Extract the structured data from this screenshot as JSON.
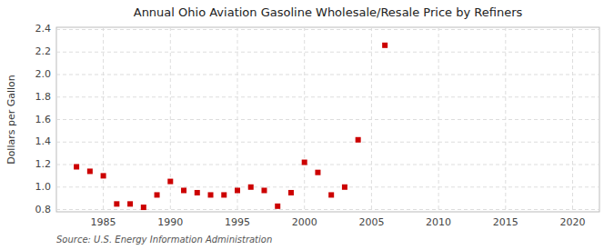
{
  "chart_data": {
    "type": "scatter",
    "title": "Annual Ohio Aviation Gasoline Wholesale/Resale Price by Refiners",
    "ylabel": "Dollars per Gallon",
    "annotations": [
      "Source: U.S. Energy Information Administration"
    ],
    "color": "#cc0000",
    "marker": "square",
    "grid": true,
    "xlim": [
      1981.5,
      2022
    ],
    "ylim": [
      0.78,
      2.42
    ],
    "xticks": [
      1985,
      1990,
      1995,
      2000,
      2005,
      2010,
      2015,
      2020
    ],
    "yticks": [
      0.8,
      {
        "value": 1.0,
        "label": "1.0"
      },
      1.2,
      1.4,
      1.6,
      1.8,
      {
        "value": 2.0,
        "label": "2.0"
      },
      2.2,
      2.4
    ],
    "x": [
      1983,
      1984,
      1985,
      1986,
      1987,
      1988,
      1989,
      1990,
      1991,
      1992,
      1993,
      1994,
      1995,
      1996,
      1997,
      1998,
      1999,
      2000,
      2001,
      2002,
      2003,
      2004,
      2006
    ],
    "values": [
      1.18,
      1.14,
      1.1,
      0.85,
      0.85,
      0.82,
      0.93,
      1.05,
      0.97,
      0.95,
      0.93,
      0.93,
      0.97,
      1.0,
      0.97,
      0.83,
      0.95,
      1.22,
      1.13,
      0.93,
      1.0,
      1.42,
      2.26
    ]
  }
}
